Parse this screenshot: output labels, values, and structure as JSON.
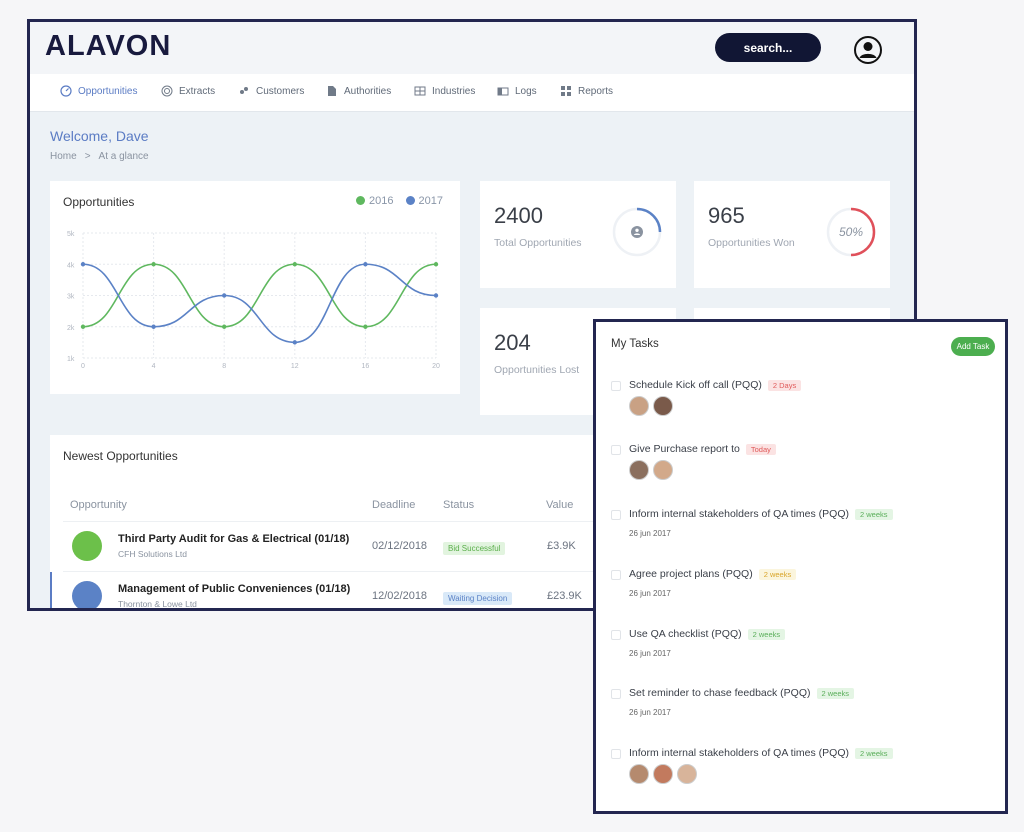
{
  "brand": {
    "name": "ALAVON"
  },
  "header": {
    "search_label": "search..."
  },
  "nav": [
    {
      "label": "Opportunities",
      "icon": "gauge-icon",
      "active": true
    },
    {
      "label": "Extracts",
      "icon": "target-icon"
    },
    {
      "label": "Customers",
      "icon": "customers-icon"
    },
    {
      "label": "Authorities",
      "icon": "document-icon"
    },
    {
      "label": "Industries",
      "icon": "grid-icon"
    },
    {
      "label": "Logs",
      "icon": "logs-icon"
    },
    {
      "label": "Reports",
      "icon": "reports-icon"
    }
  ],
  "page": {
    "welcome": "Welcome, Dave",
    "breadcrumb": {
      "home": "Home",
      "separator": ">",
      "current": "At a glance"
    }
  },
  "opportunities_chart": {
    "title": "Opportunities",
    "colors": {
      "2016": "#5fb85f",
      "2017": "#5b82c6"
    },
    "chart_data": {
      "type": "line",
      "x": [
        0,
        4,
        8,
        12,
        16,
        20
      ],
      "series": [
        {
          "name": "2016",
          "values": [
            2,
            4,
            2,
            4,
            2,
            4
          ]
        },
        {
          "name": "2017",
          "values": [
            4,
            2,
            3,
            1.5,
            4,
            3
          ]
        }
      ],
      "x_ticks": [
        "0",
        "4",
        "8",
        "12",
        "16",
        "20"
      ],
      "y_ticks": [
        "1k",
        "2k",
        "3k",
        "4k",
        "5k"
      ],
      "xlim": [
        0,
        20
      ],
      "ylim": [
        1,
        5
      ],
      "grid": true,
      "legend": "top-right"
    }
  },
  "stats": [
    {
      "value": "2400",
      "label": "Total Opportunities",
      "ring": "user-icon"
    },
    {
      "value": "965",
      "label": "Opportunities Won",
      "ring_text": "50%",
      "progress": 0.5
    },
    {
      "value": "204",
      "label": "Opportunities Lost"
    }
  ],
  "newest": {
    "title": "Newest Opportunities",
    "columns": [
      "Opportunity",
      "Deadline",
      "Status",
      "Value"
    ],
    "rows": [
      {
        "title": "Third Party Audit for Gas & Electrical (01/18)",
        "company": "CFH Solutions Ltd",
        "deadline": "02/12/2018",
        "status": "Bid Successful",
        "value": "£3.9K",
        "color": "#6cc04a"
      },
      {
        "title": "Management of Public Conveniences (01/18)",
        "company": "Thornton & Lowe Ltd",
        "deadline": "12/02/2018",
        "status": "Waiting Decision",
        "value": "£23.9K",
        "color": "#5b82c6"
      }
    ]
  },
  "tasks": {
    "title": "My Tasks",
    "add_label": "Add Task",
    "items": [
      {
        "text": "Schedule Kick off call (PQQ)",
        "tag": "2 Days",
        "tag_color": "red",
        "avatars": 2
      },
      {
        "text": "Give Purchase report to",
        "tag": "Today",
        "tag_color": "red",
        "avatars": 2
      },
      {
        "text": "Inform internal stakeholders of QA times (PQQ)",
        "tag": "2 weeks",
        "tag_color": "green",
        "date": "26 jun 2017"
      },
      {
        "text": "Agree project plans (PQQ)",
        "tag": "2 weeks",
        "tag_color": "yellow",
        "date": "26 jun 2017"
      },
      {
        "text": "Use QA checklist (PQQ)",
        "tag": "2 weeks",
        "tag_color": "green",
        "date": "26 jun 2017"
      },
      {
        "text": "Set reminder to chase feedback (PQQ)",
        "tag": "2 weeks",
        "tag_color": "green",
        "date": "26 jun 2017"
      },
      {
        "text": "Inform internal stakeholders of QA times (PQQ)",
        "tag": "2 weeks",
        "tag_color": "green",
        "avatars": 3
      }
    ]
  }
}
